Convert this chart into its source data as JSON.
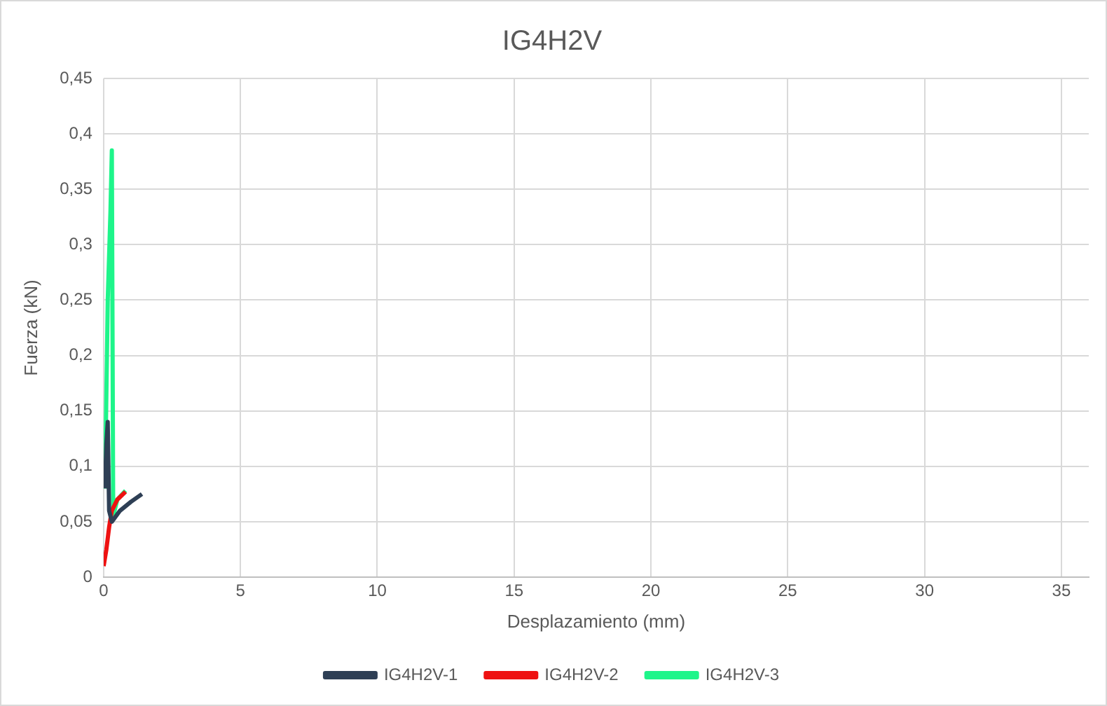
{
  "chart_data": {
    "type": "line",
    "title": "IG4H2V",
    "xlabel": "Desplazamiento (mm)",
    "ylabel": "Fuerza (kN)",
    "xlim": [
      0,
      36
    ],
    "xticks": [
      0,
      5,
      10,
      15,
      20,
      25,
      30,
      35
    ],
    "ylim": [
      0,
      0.45
    ],
    "yticks": [
      {
        "value": 0,
        "label": "0"
      },
      {
        "value": 0.05,
        "label": "0,05"
      },
      {
        "value": 0.1,
        "label": "0,1"
      },
      {
        "value": 0.15,
        "label": "0,15"
      },
      {
        "value": 0.2,
        "label": "0,2"
      },
      {
        "value": 0.25,
        "label": "0,25"
      },
      {
        "value": 0.3,
        "label": "0,3"
      },
      {
        "value": 0.35,
        "label": "0,35"
      },
      {
        "value": 0.4,
        "label": "0,4"
      },
      {
        "value": 0.45,
        "label": "0,45"
      }
    ],
    "grid": true,
    "legend": "bottom",
    "marker": "none",
    "line_style": "solid",
    "series": [
      {
        "name": "IG4H2V-1",
        "color": "#2e3f55",
        "x": [
          0.05,
          0.1,
          0.15,
          0.2,
          0.3,
          0.6,
          1,
          1.4
        ],
        "values": [
          0.08,
          0.12,
          0.14,
          0.06,
          0.05,
          0.06,
          0.068,
          0.075
        ]
      },
      {
        "name": "IG4H2V-2",
        "color": "#ee1111",
        "x": [
          0,
          0.1,
          0.2,
          0.3,
          0.5,
          0.8
        ],
        "values": [
          0.01,
          0.025,
          0.045,
          0.06,
          0.07,
          0.077
        ]
      },
      {
        "name": "IG4H2V-3",
        "color": "#1ef58a",
        "x": [
          0.05,
          0.15,
          0.25,
          0.3,
          0.35,
          0.5,
          0.8
        ],
        "values": [
          0.08,
          0.25,
          0.33,
          0.385,
          0.055,
          0.07,
          0.078
        ]
      }
    ]
  }
}
